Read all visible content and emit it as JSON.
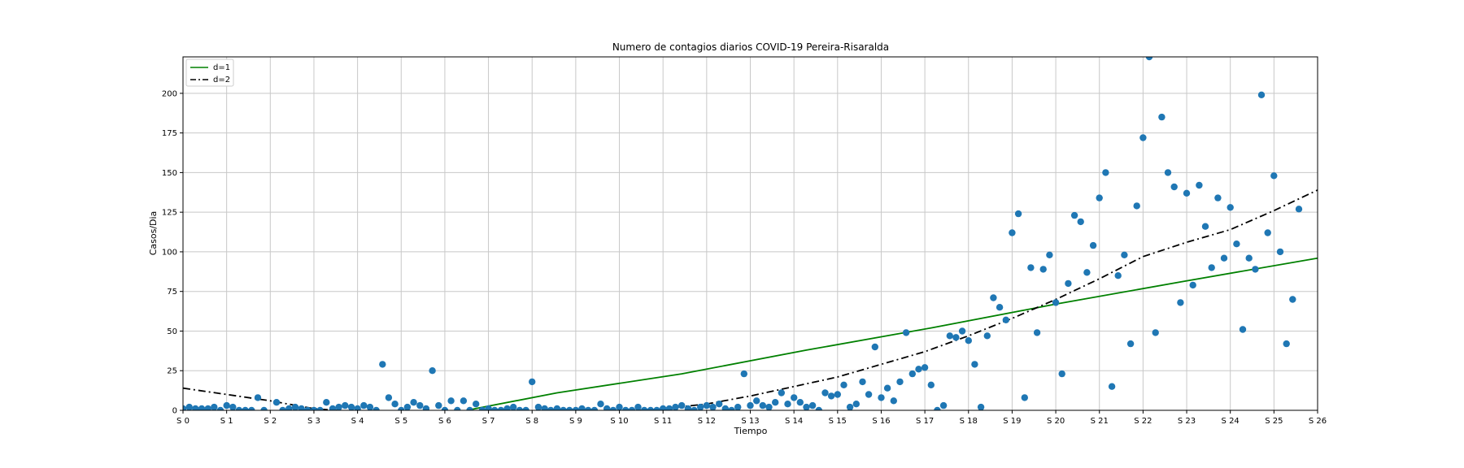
{
  "chart_data": {
    "type": "scatter",
    "title": "Numero de contagios diarios COVID-19 Pereira-Risaralda",
    "xlabel": "Tiempo",
    "ylabel": "Casos/Dia",
    "xlim": [
      0,
      182
    ],
    "ylim": [
      0,
      223
    ],
    "grid": true,
    "legend_position": "top-left",
    "x_ticks": [
      {
        "value": 0,
        "label": "S 0"
      },
      {
        "value": 7,
        "label": "S 1"
      },
      {
        "value": 14,
        "label": "S 2"
      },
      {
        "value": 21,
        "label": "S 3"
      },
      {
        "value": 28,
        "label": "S 4"
      },
      {
        "value": 35,
        "label": "S 5"
      },
      {
        "value": 42,
        "label": "S 6"
      },
      {
        "value": 49,
        "label": "S 7"
      },
      {
        "value": 56,
        "label": "S 8"
      },
      {
        "value": 63,
        "label": "S 9"
      },
      {
        "value": 70,
        "label": "S 10"
      },
      {
        "value": 77,
        "label": "S 11"
      },
      {
        "value": 84,
        "label": "S 12"
      },
      {
        "value": 91,
        "label": "S 13"
      },
      {
        "value": 98,
        "label": "S 14"
      },
      {
        "value": 105,
        "label": "S 15"
      },
      {
        "value": 112,
        "label": "S 16"
      },
      {
        "value": 119,
        "label": "S 17"
      },
      {
        "value": 126,
        "label": "S 18"
      },
      {
        "value": 133,
        "label": "S 19"
      },
      {
        "value": 140,
        "label": "S 20"
      },
      {
        "value": 147,
        "label": "S 21"
      },
      {
        "value": 154,
        "label": "S 22"
      },
      {
        "value": 161,
        "label": "S 23"
      },
      {
        "value": 168,
        "label": "S 24"
      },
      {
        "value": 175,
        "label": "S 25"
      },
      {
        "value": 182,
        "label": "S 26"
      }
    ],
    "y_ticks": [
      0,
      25,
      50,
      75,
      100,
      125,
      150,
      175,
      200
    ],
    "colors": {
      "points": "#1f77b4",
      "d1": "#008000",
      "d2": "#000000",
      "grid": "#c8c8c8"
    },
    "points": [
      [
        0,
        1
      ],
      [
        1,
        2
      ],
      [
        2,
        1
      ],
      [
        3,
        1
      ],
      [
        4,
        1
      ],
      [
        5,
        2
      ],
      [
        6,
        0
      ],
      [
        7,
        3
      ],
      [
        8,
        2
      ],
      [
        9,
        0
      ],
      [
        10,
        0
      ],
      [
        11,
        0
      ],
      [
        12,
        8
      ],
      [
        13,
        0
      ],
      [
        15,
        5
      ],
      [
        16,
        0
      ],
      [
        17,
        1
      ],
      [
        18,
        2
      ],
      [
        19,
        1
      ],
      [
        20,
        0
      ],
      [
        21,
        0
      ],
      [
        22,
        0
      ],
      [
        23,
        5
      ],
      [
        24,
        1
      ],
      [
        25,
        2
      ],
      [
        26,
        3
      ],
      [
        27,
        2
      ],
      [
        28,
        1
      ],
      [
        29,
        3
      ],
      [
        30,
        2
      ],
      [
        31,
        0
      ],
      [
        32,
        29
      ],
      [
        33,
        8
      ],
      [
        34,
        4
      ],
      [
        35,
        0
      ],
      [
        36,
        2
      ],
      [
        37,
        5
      ],
      [
        38,
        3
      ],
      [
        39,
        1
      ],
      [
        40,
        25
      ],
      [
        41,
        3
      ],
      [
        42,
        0
      ],
      [
        43,
        6
      ],
      [
        44,
        0
      ],
      [
        45,
        6
      ],
      [
        46,
        0
      ],
      [
        47,
        4
      ],
      [
        48,
        0
      ],
      [
        49,
        1
      ],
      [
        50,
        0
      ],
      [
        51,
        0
      ],
      [
        52,
        1
      ],
      [
        53,
        2
      ],
      [
        54,
        0
      ],
      [
        55,
        0
      ],
      [
        56,
        18
      ],
      [
        57,
        2
      ],
      [
        58,
        1
      ],
      [
        59,
        0
      ],
      [
        60,
        1
      ],
      [
        61,
        0
      ],
      [
        62,
        0
      ],
      [
        63,
        0
      ],
      [
        64,
        1
      ],
      [
        65,
        0
      ],
      [
        66,
        0
      ],
      [
        67,
        4
      ],
      [
        68,
        1
      ],
      [
        69,
        0
      ],
      [
        70,
        2
      ],
      [
        71,
        0
      ],
      [
        72,
        0
      ],
      [
        73,
        2
      ],
      [
        74,
        0
      ],
      [
        75,
        0
      ],
      [
        76,
        0
      ],
      [
        77,
        1
      ],
      [
        78,
        1
      ],
      [
        79,
        2
      ],
      [
        80,
        3
      ],
      [
        81,
        1
      ],
      [
        82,
        0
      ],
      [
        83,
        2
      ],
      [
        84,
        3
      ],
      [
        85,
        2
      ],
      [
        86,
        4
      ],
      [
        87,
        1
      ],
      [
        88,
        0
      ],
      [
        89,
        2
      ],
      [
        90,
        23
      ],
      [
        91,
        3
      ],
      [
        92,
        6
      ],
      [
        93,
        3
      ],
      [
        94,
        2
      ],
      [
        95,
        5
      ],
      [
        96,
        11
      ],
      [
        97,
        4
      ],
      [
        98,
        8
      ],
      [
        99,
        5
      ],
      [
        100,
        2
      ],
      [
        101,
        3
      ],
      [
        102,
        0
      ],
      [
        103,
        11
      ],
      [
        104,
        9
      ],
      [
        105,
        10
      ],
      [
        106,
        16
      ],
      [
        107,
        2
      ],
      [
        108,
        4
      ],
      [
        109,
        18
      ],
      [
        110,
        10
      ],
      [
        111,
        40
      ],
      [
        112,
        8
      ],
      [
        113,
        14
      ],
      [
        114,
        6
      ],
      [
        115,
        18
      ],
      [
        116,
        49
      ],
      [
        117,
        23
      ],
      [
        118,
        26
      ],
      [
        119,
        27
      ],
      [
        120,
        16
      ],
      [
        121,
        0
      ],
      [
        122,
        3
      ],
      [
        123,
        47
      ],
      [
        124,
        46
      ],
      [
        125,
        50
      ],
      [
        126,
        44
      ],
      [
        127,
        29
      ],
      [
        128,
        2
      ],
      [
        129,
        47
      ],
      [
        130,
        71
      ],
      [
        131,
        65
      ],
      [
        132,
        57
      ],
      [
        133,
        112
      ],
      [
        134,
        124
      ],
      [
        135,
        8
      ],
      [
        136,
        90
      ],
      [
        137,
        49
      ],
      [
        138,
        89
      ],
      [
        139,
        98
      ],
      [
        140,
        68
      ],
      [
        141,
        23
      ],
      [
        142,
        80
      ],
      [
        143,
        123
      ],
      [
        144,
        119
      ],
      [
        145,
        87
      ],
      [
        146,
        104
      ],
      [
        147,
        134
      ],
      [
        148,
        150
      ],
      [
        149,
        15
      ],
      [
        150,
        85
      ],
      [
        151,
        98
      ],
      [
        152,
        42
      ],
      [
        153,
        129
      ],
      [
        154,
        172
      ],
      [
        155,
        223
      ],
      [
        156,
        49
      ],
      [
        157,
        185
      ],
      [
        158,
        150
      ],
      [
        159,
        141
      ],
      [
        160,
        68
      ],
      [
        161,
        137
      ],
      [
        162,
        79
      ],
      [
        163,
        142
      ],
      [
        164,
        116
      ],
      [
        165,
        90
      ],
      [
        166,
        134
      ],
      [
        167,
        96
      ],
      [
        168,
        128
      ],
      [
        169,
        105
      ],
      [
        170,
        51
      ],
      [
        171,
        96
      ],
      [
        172,
        89
      ],
      [
        173,
        199
      ],
      [
        174,
        112
      ],
      [
        175,
        148
      ],
      [
        176,
        100
      ],
      [
        177,
        42
      ],
      [
        178,
        70
      ],
      [
        179,
        127
      ]
    ],
    "series": [
      {
        "name": "d=1",
        "style": "solid",
        "points": [
          [
            45.5,
            0
          ],
          [
            60,
            11
          ],
          [
            80,
            23
          ],
          [
            100,
            38
          ],
          [
            120,
            52
          ],
          [
            140,
            67
          ],
          [
            160,
            81
          ],
          [
            182,
            96
          ]
        ]
      },
      {
        "name": "d=2",
        "style": "dashdot",
        "points": [
          [
            0,
            14
          ],
          [
            7,
            10
          ],
          [
            14,
            6
          ],
          [
            21,
            1
          ],
          [
            28,
            -1
          ],
          [
            35,
            -3
          ],
          [
            42,
            -5
          ],
          [
            49,
            -4
          ],
          [
            56,
            -4
          ],
          [
            63,
            -3
          ],
          [
            70,
            -1
          ],
          [
            77,
            1
          ],
          [
            84,
            4
          ],
          [
            91,
            9
          ],
          [
            98,
            15
          ],
          [
            105,
            21
          ],
          [
            112,
            29
          ],
          [
            119,
            37
          ],
          [
            126,
            47
          ],
          [
            133,
            58
          ],
          [
            140,
            70
          ],
          [
            147,
            83
          ],
          [
            154,
            97
          ],
          [
            161,
            106
          ],
          [
            168,
            114
          ],
          [
            175,
            126
          ],
          [
            182,
            139
          ]
        ]
      }
    ]
  }
}
